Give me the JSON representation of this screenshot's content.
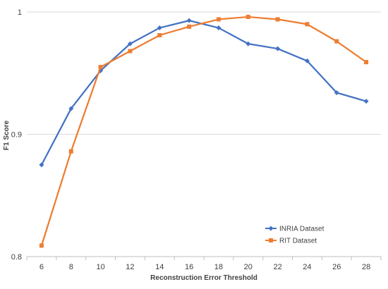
{
  "chart_data": {
    "type": "line",
    "title": "",
    "xlabel": "Reconstruction Error Threshold",
    "ylabel": "F1 Score",
    "x": [
      6,
      8,
      10,
      12,
      14,
      16,
      18,
      20,
      22,
      24,
      26,
      28
    ],
    "x_tick_labels": [
      "6",
      "8",
      "10",
      "12",
      "14",
      "16",
      "18",
      "20",
      "22",
      "24",
      "26",
      "28"
    ],
    "y_tick_labels": [
      "0.8",
      "0.9",
      "1"
    ],
    "y_ticks": [
      0.8,
      0.9,
      1.0
    ],
    "ylim": [
      0.8,
      1.0
    ],
    "grid": "horizontal major gridlines",
    "legend_position": "bottom-right",
    "series": [
      {
        "name": "INRIA Dataset",
        "color": "#4472C4",
        "marker": "diamond",
        "values": [
          0.875,
          0.921,
          0.952,
          0.974,
          0.987,
          0.993,
          0.987,
          0.974,
          0.97,
          0.96,
          0.934,
          0.927
        ]
      },
      {
        "name": "RIT Dataset",
        "color": "#ED7D31",
        "marker": "square",
        "values": [
          0.809,
          0.886,
          0.955,
          0.968,
          0.981,
          0.988,
          0.994,
          0.996,
          0.994,
          0.99,
          0.976,
          0.959
        ]
      }
    ]
  }
}
